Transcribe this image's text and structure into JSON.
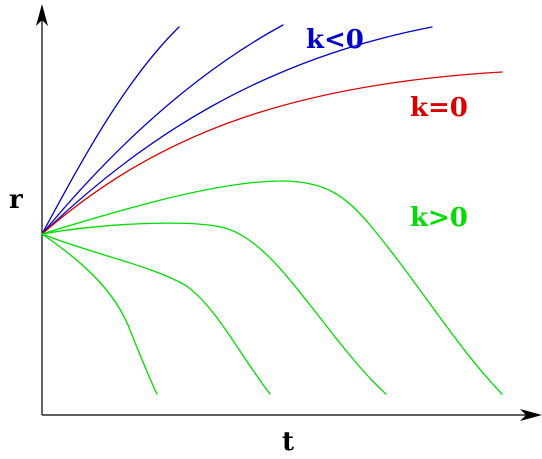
{
  "axes": {
    "x_label": "t",
    "y_label": "r"
  },
  "legend": {
    "negative": {
      "text": "k<0",
      "color": "#0000cc"
    },
    "zero": {
      "text": "k=0",
      "color": "#dd0000"
    },
    "positive": {
      "text": "k>0",
      "color": "#00dd00"
    }
  },
  "colors": {
    "axis": "#000000",
    "negative_curvature": "#0000cc",
    "flat": "#dd0000",
    "positive_curvature": "#00dd00"
  }
}
